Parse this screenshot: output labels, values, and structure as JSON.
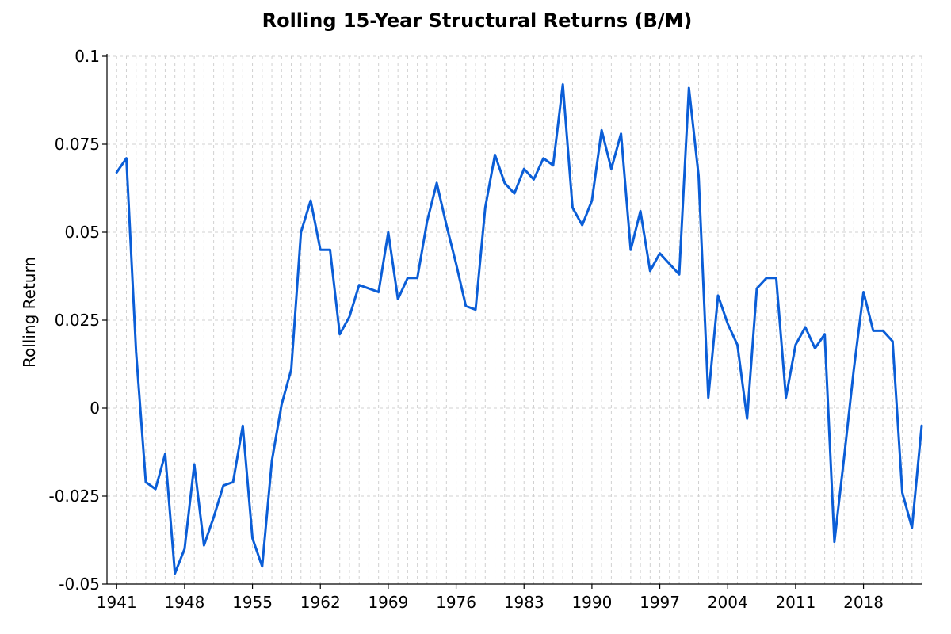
{
  "chart_data": {
    "type": "line",
    "title": "Rolling 15-Year Structural Returns (B/M)",
    "xlabel": "",
    "ylabel": "Rolling Return",
    "xlim": [
      1940,
      2024
    ],
    "ylim": [
      -0.05,
      0.1
    ],
    "grid": true,
    "legend": "none",
    "x_ticks": [
      1941,
      1948,
      1955,
      1962,
      1969,
      1976,
      1983,
      1990,
      1997,
      2004,
      2011,
      2018
    ],
    "y_ticks": [
      -0.05,
      -0.025,
      0,
      0.025,
      0.05,
      0.075,
      0.1
    ],
    "y_tick_labels": [
      "-0.05",
      "-0.025",
      "0",
      "0.025",
      "0.05",
      "0.075",
      "0.1"
    ],
    "line_color": "#0b5ed7",
    "series": [
      {
        "x": [
          1941,
          1942,
          1943,
          1944,
          1945,
          1946,
          1947,
          1948,
          1949,
          1950,
          1951,
          1952,
          1953,
          1954,
          1955,
          1956,
          1957,
          1958,
          1959,
          1960,
          1961,
          1962,
          1963,
          1964,
          1965,
          1966,
          1967,
          1968,
          1969,
          1970,
          1971,
          1972,
          1973,
          1974,
          1975,
          1976,
          1977,
          1978,
          1979,
          1980,
          1981,
          1982,
          1983,
          1984,
          1985,
          1986,
          1987,
          1988,
          1989,
          1990,
          1991,
          1992,
          1993,
          1994,
          1995,
          1996,
          1997,
          1998,
          1999,
          2000,
          2001,
          2002,
          2003,
          2004,
          2005,
          2006,
          2007,
          2008,
          2009,
          2010,
          2011,
          2012,
          2013,
          2014,
          2015,
          2016,
          2017,
          2018,
          2019,
          2020,
          2021,
          2022,
          2023,
          2024
        ],
        "values": [
          0.067,
          0.071,
          0.016,
          -0.021,
          -0.023,
          -0.013,
          -0.047,
          -0.04,
          -0.016,
          -0.039,
          -0.031,
          -0.022,
          -0.021,
          -0.005,
          -0.037,
          -0.045,
          -0.015,
          0.001,
          0.011,
          0.05,
          0.059,
          0.045,
          0.045,
          0.021,
          0.026,
          0.035,
          0.034,
          0.033,
          0.05,
          0.031,
          0.037,
          0.037,
          0.053,
          0.064,
          0.052,
          0.041,
          0.029,
          0.028,
          0.057,
          0.072,
          0.064,
          0.061,
          0.068,
          0.065,
          0.071,
          0.069,
          0.092,
          0.057,
          0.052,
          0.059,
          0.079,
          0.068,
          0.078,
          0.045,
          0.056,
          0.039,
          0.044,
          0.041,
          0.038,
          0.091,
          0.066,
          0.003,
          0.032,
          0.024,
          0.018,
          -0.003,
          0.034,
          0.037,
          0.037,
          0.003,
          0.018,
          0.023,
          0.017,
          0.021,
          -0.038,
          -0.014,
          0.011,
          0.033,
          0.022,
          0.022,
          0.019,
          -0.024,
          -0.034,
          -0.005
        ]
      }
    ]
  }
}
